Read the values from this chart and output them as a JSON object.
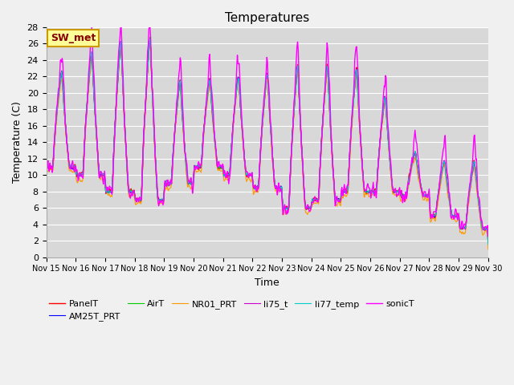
{
  "title": "Temperatures",
  "xlabel": "Time",
  "ylabel": "Temperature (C)",
  "ylim": [
    0,
    28
  ],
  "yticks": [
    0,
    2,
    4,
    6,
    8,
    10,
    12,
    14,
    16,
    18,
    20,
    22,
    24,
    26,
    28
  ],
  "xtick_labels": [
    "Nov 15",
    "Nov 16",
    "Nov 17",
    "Nov 18",
    "Nov 19",
    "Nov 20",
    "Nov 21",
    "Nov 22",
    "Nov 23",
    "Nov 24",
    "Nov 25",
    "Nov 26",
    "Nov 27",
    "Nov 28",
    "Nov 29",
    "Nov 30"
  ],
  "series_names": [
    "PanelT",
    "AM25T_PRT",
    "AirT",
    "NR01_PRT",
    "li75_t",
    "li77_temp",
    "sonicT"
  ],
  "series_colors": [
    "#ff0000",
    "#0000ff",
    "#00cc00",
    "#ff9900",
    "#cc00cc",
    "#00cccc",
    "#ff00ff"
  ],
  "series_linewidths": [
    1.0,
    0.8,
    0.8,
    0.8,
    0.8,
    0.8,
    1.0
  ],
  "plot_bg_color": "#d8d8d8",
  "fig_bg_color": "#f0f0f0",
  "grid_color": "#ffffff",
  "annotation_text": "SW_met",
  "annotation_bg": "#ffff99",
  "annotation_border": "#cc9900",
  "annotation_text_color": "#880000"
}
